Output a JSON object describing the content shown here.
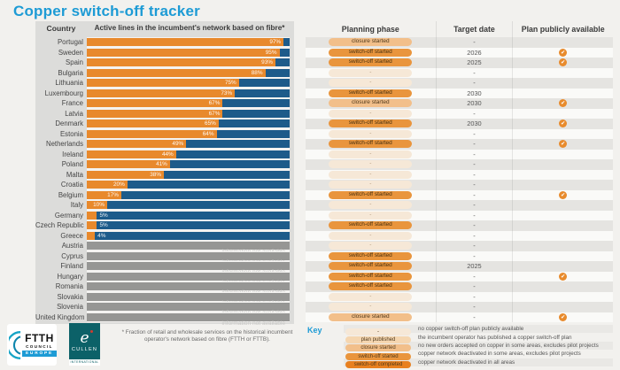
{
  "title": "Copper switch-off tracker",
  "colors": {
    "accent_blue": "#1d9bd5",
    "bar_orange": "#e8892c",
    "bar_blue": "#1d5b8a",
    "na_gray": "#969694",
    "check_orange": "#e88b2d",
    "pill_none": "#f6e8d7",
    "pill_published": "#f5d6b0",
    "pill_closure": "#f2bf8a",
    "pill_started": "#e9953d",
    "pill_completed": "#e8801f"
  },
  "table": {
    "headers": {
      "country": "Country",
      "fibre": "Active lines in the incumbent's network based on fibre*",
      "phase": "Planning phase",
      "target": "Target date",
      "plan": "Plan publicly available"
    }
  },
  "chart_data": {
    "type": "bar",
    "title": "Copper switch-off tracker",
    "xlabel": "Active lines in the incumbent's network based on fibre*",
    "xlim": [
      0,
      100
    ],
    "na_label": "information not available",
    "categories": [
      "Portugal",
      "Sweden",
      "Spain",
      "Bulgaria",
      "Lithuania",
      "Luxembourg",
      "France",
      "Latvia",
      "Denmark",
      "Estonia",
      "Netherlands",
      "Ireland",
      "Poland",
      "Malta",
      "Croatia",
      "Belgium",
      "Italy",
      "Germany",
      "Czech Republic",
      "Greece",
      "Austria",
      "Cyprus",
      "Finland",
      "Hungary",
      "Romania",
      "Slovakia",
      "Slovenia",
      "United Kingdom"
    ],
    "values": [
      97,
      95,
      93,
      88,
      75,
      73,
      67,
      67,
      65,
      64,
      49,
      44,
      41,
      38,
      20,
      17,
      10,
      5,
      5,
      4,
      null,
      null,
      null,
      null,
      null,
      null,
      null,
      null
    ],
    "rows": [
      {
        "country": "Portugal",
        "fibre_pct": 97,
        "fibre_label": "97%",
        "planning_phase": "closure started",
        "target_date": "-",
        "plan_publicly_available": false
      },
      {
        "country": "Sweden",
        "fibre_pct": 95,
        "fibre_label": "95%",
        "planning_phase": "switch-off started",
        "target_date": "2026",
        "plan_publicly_available": true
      },
      {
        "country": "Spain",
        "fibre_pct": 93,
        "fibre_label": "93%",
        "planning_phase": "switch-off started",
        "target_date": "2025",
        "plan_publicly_available": true
      },
      {
        "country": "Bulgaria",
        "fibre_pct": 88,
        "fibre_label": "88%",
        "planning_phase": "-",
        "target_date": "-",
        "plan_publicly_available": false
      },
      {
        "country": "Lithuania",
        "fibre_pct": 75,
        "fibre_label": "75%",
        "planning_phase": "-",
        "target_date": "-",
        "plan_publicly_available": false
      },
      {
        "country": "Luxembourg",
        "fibre_pct": 73,
        "fibre_label": "73%",
        "planning_phase": "switch-off started",
        "target_date": "2030",
        "plan_publicly_available": false
      },
      {
        "country": "France",
        "fibre_pct": 67,
        "fibre_label": "67%",
        "planning_phase": "closure started",
        "target_date": "2030",
        "plan_publicly_available": true
      },
      {
        "country": "Latvia",
        "fibre_pct": 67,
        "fibre_label": "67%",
        "planning_phase": "-",
        "target_date": "-",
        "plan_publicly_available": false
      },
      {
        "country": "Denmark",
        "fibre_pct": 65,
        "fibre_label": "65%",
        "planning_phase": "switch-off started",
        "target_date": "2030",
        "plan_publicly_available": true
      },
      {
        "country": "Estonia",
        "fibre_pct": 64,
        "fibre_label": "64%",
        "planning_phase": "-",
        "target_date": "-",
        "plan_publicly_available": false
      },
      {
        "country": "Netherlands",
        "fibre_pct": 49,
        "fibre_label": "49%",
        "planning_phase": "switch-off started",
        "target_date": "-",
        "plan_publicly_available": true
      },
      {
        "country": "Ireland",
        "fibre_pct": 44,
        "fibre_label": "44%",
        "planning_phase": "-",
        "target_date": "-",
        "plan_publicly_available": false
      },
      {
        "country": "Poland",
        "fibre_pct": 41,
        "fibre_label": "41%",
        "planning_phase": "-",
        "target_date": "-",
        "plan_publicly_available": false
      },
      {
        "country": "Malta",
        "fibre_pct": 38,
        "fibre_label": "38%",
        "planning_phase": "-",
        "target_date": "-",
        "plan_publicly_available": false
      },
      {
        "country": "Croatia",
        "fibre_pct": 20,
        "fibre_label": "20%",
        "planning_phase": "-",
        "target_date": "-",
        "plan_publicly_available": false
      },
      {
        "country": "Belgium",
        "fibre_pct": 17,
        "fibre_label": "17%",
        "planning_phase": "switch-off started",
        "target_date": "-",
        "plan_publicly_available": true
      },
      {
        "country": "Italy",
        "fibre_pct": 10,
        "fibre_label": "10%",
        "planning_phase": "-",
        "target_date": "-",
        "plan_publicly_available": false
      },
      {
        "country": "Germany",
        "fibre_pct": 5,
        "fibre_label": "5%",
        "planning_phase": "-",
        "target_date": "-",
        "plan_publicly_available": false
      },
      {
        "country": "Czech Republic",
        "fibre_pct": 5,
        "fibre_label": "5%",
        "planning_phase": "switch-off started",
        "target_date": "-",
        "plan_publicly_available": false
      },
      {
        "country": "Greece",
        "fibre_pct": 4,
        "fibre_label": "4%",
        "planning_phase": "-",
        "target_date": "-",
        "plan_publicly_available": false
      },
      {
        "country": "Austria",
        "fibre_pct": null,
        "fibre_label": "information not available",
        "planning_phase": "-",
        "target_date": "-",
        "plan_publicly_available": false
      },
      {
        "country": "Cyprus",
        "fibre_pct": null,
        "fibre_label": "information not available",
        "planning_phase": "switch-off started",
        "target_date": "-",
        "plan_publicly_available": false
      },
      {
        "country": "Finland",
        "fibre_pct": null,
        "fibre_label": "information not available",
        "planning_phase": "switch-off started",
        "target_date": "2025",
        "plan_publicly_available": false
      },
      {
        "country": "Hungary",
        "fibre_pct": null,
        "fibre_label": "information not available",
        "planning_phase": "switch-off started",
        "target_date": "-",
        "plan_publicly_available": true
      },
      {
        "country": "Romania",
        "fibre_pct": null,
        "fibre_label": "information not available",
        "planning_phase": "switch-off started",
        "target_date": "-",
        "plan_publicly_available": false
      },
      {
        "country": "Slovakia",
        "fibre_pct": null,
        "fibre_label": "information not available",
        "planning_phase": "-",
        "target_date": "-",
        "plan_publicly_available": false
      },
      {
        "country": "Slovenia",
        "fibre_pct": null,
        "fibre_label": "information not available",
        "planning_phase": "-",
        "target_date": "-",
        "plan_publicly_available": false
      },
      {
        "country": "United Kingdom",
        "fibre_pct": null,
        "fibre_label": "information not available",
        "planning_phase": "closure started",
        "target_date": "-",
        "plan_publicly_available": true
      }
    ]
  },
  "footnote": "* Fraction of retail and wholesale services on the historical incumbent operator's network based on fibre (FTTH or FTTB).",
  "key": {
    "label": "Key",
    "items": [
      {
        "label": "-",
        "type": "none",
        "desc": "no copper switch-off plan publicly available"
      },
      {
        "label": "plan published",
        "type": "published",
        "desc": "the incumbent operator has published a copper switch-off plan"
      },
      {
        "label": "closure started",
        "type": "closure",
        "desc": "no new orders accepted on copper in some areas, excludes pilot projects"
      },
      {
        "label": "switch-off started",
        "type": "started",
        "desc": "copper network deactivated in some areas, excludes pilot projects"
      },
      {
        "label": "switch-off completed",
        "type": "completed",
        "desc": "copper network deactivated in all areas"
      }
    ]
  },
  "logos": {
    "ftth": {
      "line1": "FTTH",
      "line2": "COUNCIL",
      "line3": "EUROPE"
    },
    "cullen": {
      "glyph": "e",
      "name": "CULLEN",
      "sub": "INTERNATIONAL"
    }
  }
}
